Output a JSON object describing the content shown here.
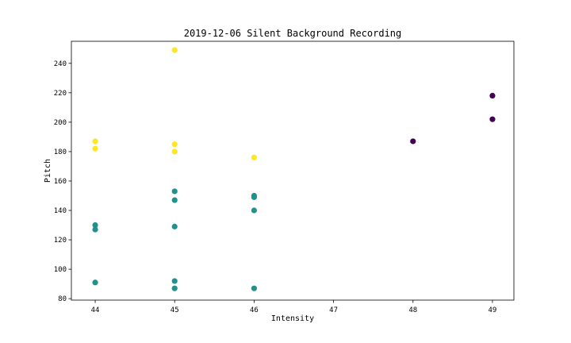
{
  "chart_data": {
    "type": "scatter",
    "title": "2019-12-06 Silent Background Recording",
    "xlabel": "Intensity",
    "ylabel": "Pitch",
    "xlim": [
      43.7,
      49.27
    ],
    "ylim": [
      79,
      255
    ],
    "xticks": [
      "44",
      "45",
      "46",
      "47",
      "48",
      "49"
    ],
    "yticks": [
      "80",
      "100",
      "120",
      "140",
      "160",
      "180",
      "200",
      "220",
      "240"
    ],
    "grid": false,
    "legend": "none",
    "colors": {
      "yellow": "#fde725",
      "teal": "#21918c",
      "purple": "#440154"
    },
    "points": [
      {
        "x": 44,
        "y": 187,
        "color": "yellow"
      },
      {
        "x": 44,
        "y": 182,
        "color": "yellow"
      },
      {
        "x": 45,
        "y": 249,
        "color": "yellow"
      },
      {
        "x": 45,
        "y": 185,
        "color": "yellow"
      },
      {
        "x": 45,
        "y": 180,
        "color": "yellow"
      },
      {
        "x": 46,
        "y": 176,
        "color": "yellow"
      },
      {
        "x": 44,
        "y": 130,
        "color": "teal"
      },
      {
        "x": 44,
        "y": 127,
        "color": "teal"
      },
      {
        "x": 44,
        "y": 91,
        "color": "teal"
      },
      {
        "x": 45,
        "y": 153,
        "color": "teal"
      },
      {
        "x": 45,
        "y": 147,
        "color": "teal"
      },
      {
        "x": 45,
        "y": 129,
        "color": "teal"
      },
      {
        "x": 45,
        "y": 92,
        "color": "teal"
      },
      {
        "x": 45,
        "y": 87,
        "color": "teal"
      },
      {
        "x": 46,
        "y": 150,
        "color": "teal"
      },
      {
        "x": 46,
        "y": 149,
        "color": "teal"
      },
      {
        "x": 46,
        "y": 140,
        "color": "teal"
      },
      {
        "x": 46,
        "y": 87,
        "color": "teal"
      },
      {
        "x": 48,
        "y": 187,
        "color": "purple"
      },
      {
        "x": 49,
        "y": 218,
        "color": "purple"
      },
      {
        "x": 49,
        "y": 202,
        "color": "purple"
      }
    ]
  }
}
